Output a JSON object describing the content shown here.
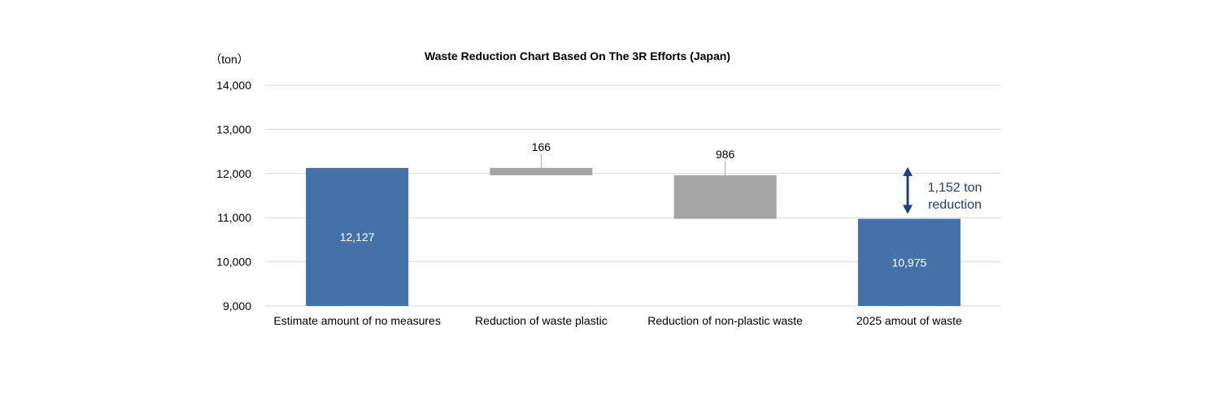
{
  "chart_data": {
    "type": "bar",
    "title": "Waste Reduction Chart Based On The 3R Efforts (Japan)",
    "unit_label": "（ton）",
    "categories": [
      "Estimate amount of no measures",
      "Reduction of waste plastic",
      "Reduction of non-plastic waste",
      "2025 amout of waste"
    ],
    "bars": [
      {
        "base": 9000,
        "top": 12127,
        "label": "12,127",
        "kind": "total"
      },
      {
        "base": 11961,
        "top": 12127,
        "label": "166",
        "kind": "reduction"
      },
      {
        "base": 10975,
        "top": 11961,
        "label": "986",
        "kind": "reduction"
      },
      {
        "base": 9000,
        "top": 10975,
        "label": "10,975",
        "kind": "total"
      }
    ],
    "ylim": [
      9000,
      14000
    ],
    "yticks": [
      9000,
      10000,
      11000,
      12000,
      13000,
      14000
    ],
    "ytick_labels": [
      "9,000",
      "10,000",
      "11,000",
      "12,000",
      "13,000",
      "14,000"
    ],
    "grid": true,
    "colors": {
      "total": "#4472a8",
      "reduction": "#a5a5a5",
      "grid": "#d9d9d9",
      "annotation": "#1f3f7a"
    },
    "annotation": {
      "lines": [
        "1,152 ton",
        "reduction"
      ],
      "from": 12127,
      "to": 10975
    }
  }
}
